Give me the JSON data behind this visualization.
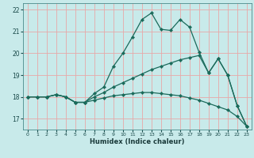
{
  "xlabel": "Humidex (Indice chaleur)",
  "background_color": "#c8eaea",
  "grid_color": "#e8a8a8",
  "line_color": "#1a6a5a",
  "xlim": [
    -0.5,
    23.5
  ],
  "ylim": [
    16.5,
    22.3
  ],
  "xticks": [
    0,
    1,
    2,
    3,
    4,
    5,
    6,
    7,
    8,
    9,
    10,
    11,
    12,
    13,
    14,
    15,
    16,
    17,
    18,
    19,
    20,
    21,
    22,
    23
  ],
  "yticks": [
    17,
    18,
    19,
    20,
    21,
    22
  ],
  "lines": [
    {
      "x": [
        0,
        1,
        2,
        3,
        4,
        5,
        6,
        7,
        8,
        9,
        10,
        11,
        12,
        13,
        14,
        15,
        16,
        17,
        18,
        19,
        20,
        21,
        22,
        23
      ],
      "y": [
        18.0,
        18.0,
        18.0,
        18.1,
        18.0,
        17.75,
        17.75,
        18.15,
        18.45,
        19.4,
        20.0,
        20.75,
        21.55,
        21.85,
        21.1,
        21.05,
        21.55,
        21.2,
        20.05,
        19.1,
        19.75,
        19.0,
        17.6,
        16.65
      ]
    },
    {
      "x": [
        0,
        1,
        2,
        3,
        4,
        5,
        6,
        7,
        8,
        9,
        10,
        11,
        12,
        13,
        14,
        15,
        16,
        17,
        18,
        19,
        20,
        21,
        22,
        23
      ],
      "y": [
        18.0,
        18.0,
        18.0,
        18.1,
        18.0,
        17.75,
        17.75,
        18.0,
        18.2,
        18.45,
        18.65,
        18.85,
        19.05,
        19.25,
        19.4,
        19.55,
        19.7,
        19.8,
        19.9,
        19.1,
        19.75,
        19.0,
        17.6,
        16.65
      ]
    },
    {
      "x": [
        0,
        1,
        2,
        3,
        4,
        5,
        6,
        7,
        8,
        9,
        10,
        11,
        12,
        13,
        14,
        15,
        16,
        17,
        18,
        19,
        20,
        21,
        22,
        23
      ],
      "y": [
        18.0,
        18.0,
        18.0,
        18.1,
        18.0,
        17.75,
        17.75,
        17.85,
        17.95,
        18.05,
        18.1,
        18.15,
        18.2,
        18.2,
        18.15,
        18.1,
        18.05,
        17.95,
        17.85,
        17.7,
        17.55,
        17.4,
        17.1,
        16.65
      ]
    }
  ]
}
